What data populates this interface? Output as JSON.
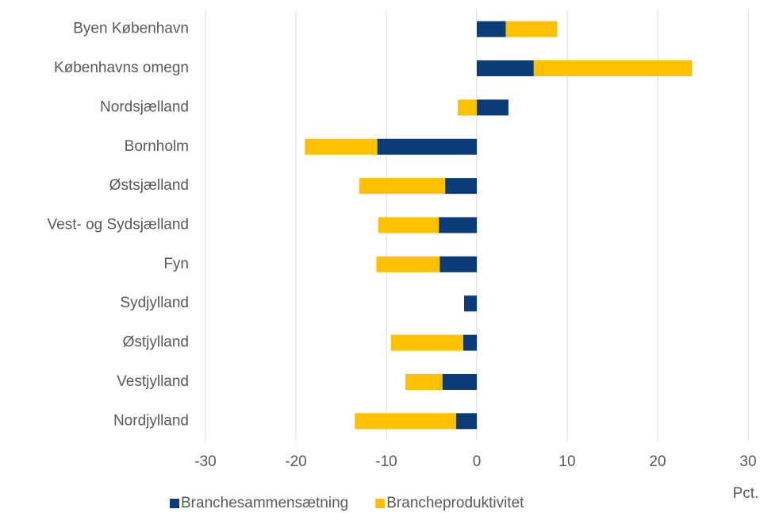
{
  "chart_data": {
    "type": "bar",
    "orientation": "horizontal",
    "stacked": true,
    "categories": [
      "Byen København",
      "Københavns omegn",
      "Nordsjælland",
      "Bornholm",
      "Østsjælland",
      "Vest- og Sydsjælland",
      "Fyn",
      "Sydjylland",
      "Østjylland",
      "Vestjylland",
      "Nordjylland"
    ],
    "series": [
      {
        "name": "Branchesammensætning",
        "color": "#0b3c78",
        "values": [
          3.2,
          6.3,
          3.5,
          -11.0,
          -3.5,
          -4.2,
          -4.1,
          -1.4,
          -1.5,
          -3.8,
          -2.3
        ]
      },
      {
        "name": "Brancheproduktivitet",
        "color": "#ffc000",
        "values": [
          5.7,
          17.5,
          -2.1,
          -8.0,
          -9.5,
          -6.7,
          -7.0,
          0,
          -8.0,
          -4.1,
          -11.2
        ]
      }
    ],
    "xlim": [
      -30,
      30
    ],
    "xticks": [
      -30,
      -20,
      -10,
      0,
      10,
      20,
      30
    ],
    "xlabel": "Pct.",
    "grid": true,
    "legend": "bottom"
  }
}
